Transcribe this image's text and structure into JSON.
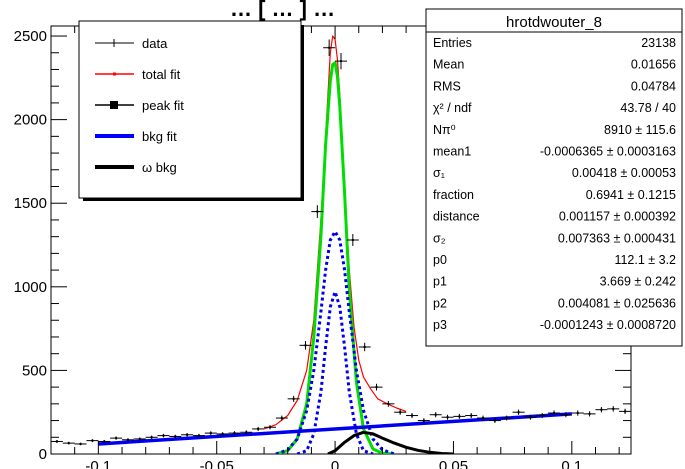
{
  "chart_data": {
    "type": "line",
    "title": "… [ … ] …",
    "xlim": [
      -0.12,
      0.125
    ],
    "ylim": [
      0,
      2560
    ],
    "x_ticks": [
      -0.1,
      -0.05,
      0,
      0.05,
      0.1
    ],
    "x_tick_labels": [
      "-0.1",
      "-0.05",
      "0",
      "0.05",
      "0.1"
    ],
    "y_ticks": [
      0,
      500,
      1000,
      1500,
      2000,
      2500
    ],
    "y_tick_labels": [
      "0",
      "500",
      "1000",
      "1500",
      "2000",
      "2500"
    ],
    "grid": false,
    "legend_placement": "top-left",
    "legend": [
      {
        "label": "data",
        "style": "data",
        "color": "#000000"
      },
      {
        "label": "total fit",
        "style": "line",
        "color": "#ff0000"
      },
      {
        "label": "peak fit",
        "style": "square",
        "color": "#000000"
      },
      {
        "label": "bkg fit",
        "style": "thick",
        "color": "#0000ff"
      },
      {
        "label": "ω bkg",
        "style": "thick",
        "color": "#000000"
      }
    ],
    "stats": {
      "title": "hrotdwouter_8",
      "rows": [
        {
          "name": "Entries",
          "value": "23138"
        },
        {
          "name": "Mean",
          "value": "0.01656"
        },
        {
          "name": "RMS",
          "value": "0.04784"
        },
        {
          "name": "χ² / ndf",
          "value": "43.78 / 40"
        },
        {
          "name": "Nπ⁰",
          "value": "8910 ± 115.6"
        },
        {
          "name": "mean1",
          "value": "-0.0006365 ± 0.0003163"
        },
        {
          "name": "σ₁",
          "value": "0.00418 ± 0.00053"
        },
        {
          "name": "fraction",
          "value": "0.6941 ± 0.1215"
        },
        {
          "name": "distance",
          "value": "0.001157 ± 0.000392"
        },
        {
          "name": "σ₂",
          "value": "0.007363 ± 0.000431"
        },
        {
          "name": "p0",
          "value": "112.1 ± 3.2"
        },
        {
          "name": "p1",
          "value": "3.669 ± 0.242"
        },
        {
          "name": "p2",
          "value": "0.004081 ± 0.025636"
        },
        {
          "name": "p3",
          "value": "-0.0001243 ± 0.0008720"
        }
      ]
    },
    "data_points": {
      "x": [
        -0.1175,
        -0.1125,
        -0.1075,
        -0.1025,
        -0.0975,
        -0.0925,
        -0.0875,
        -0.0825,
        -0.0775,
        -0.0725,
        -0.0675,
        -0.0625,
        -0.0575,
        -0.0525,
        -0.0475,
        -0.0425,
        -0.0375,
        -0.0325,
        -0.0275,
        -0.0225,
        -0.0175,
        -0.0125,
        -0.0075,
        -0.0025,
        0.0025,
        0.0075,
        0.0125,
        0.0175,
        0.0225,
        0.0275,
        0.0325,
        0.0375,
        0.0425,
        0.0475,
        0.0525,
        0.0575,
        0.0625,
        0.0675,
        0.0725,
        0.0775,
        0.0825,
        0.0875,
        0.0925,
        0.0975,
        0.1025,
        0.1075,
        0.1125,
        0.1175,
        0.1225
      ],
      "y": [
        75,
        65,
        60,
        80,
        75,
        95,
        85,
        90,
        100,
        110,
        105,
        115,
        110,
        125,
        120,
        125,
        130,
        150,
        160,
        215,
        330,
        650,
        1450,
        2430,
        2350,
        1280,
        640,
        400,
        300,
        250,
        230,
        200,
        235,
        220,
        225,
        230,
        215,
        200,
        215,
        250,
        220,
        230,
        245,
        235,
        245,
        240,
        265,
        270,
        255
      ]
    },
    "series": [
      {
        "name": "total fit",
        "color": "#ff0000",
        "width": 1.2,
        "dash": "",
        "x": [
          -0.03,
          -0.025,
          -0.02,
          -0.016,
          -0.012,
          -0.009,
          -0.006,
          -0.004,
          -0.002,
          -0.001,
          0,
          0.001,
          0.002,
          0.004,
          0.006,
          0.008,
          0.01,
          0.012,
          0.015,
          0.018,
          0.022,
          0.026,
          0.03
        ],
        "y": [
          150,
          175,
          230,
          320,
          500,
          800,
          1400,
          1900,
          2400,
          2500,
          2480,
          2360,
          2150,
          1600,
          1100,
          760,
          560,
          460,
          390,
          330,
          300,
          275,
          255
        ]
      },
      {
        "name": "peak fit (gaussian sum)",
        "color": "#00dd00",
        "width": 3,
        "dash": "",
        "x": [
          -0.025,
          -0.02,
          -0.016,
          -0.012,
          -0.009,
          -0.006,
          -0.004,
          -0.002,
          -0.001,
          0,
          0.001,
          0.002,
          0.004,
          0.006,
          0.009,
          0.012,
          0.016,
          0.02,
          0.025
        ],
        "y": [
          0,
          20,
          90,
          300,
          700,
          1300,
          1850,
          2230,
          2330,
          2340,
          2260,
          2080,
          1560,
          980,
          430,
          150,
          30,
          5,
          0
        ]
      },
      {
        "name": "narrow gaussian",
        "color": "#0000ee",
        "width": 3,
        "dash": "3,3",
        "x": [
          -0.016,
          -0.012,
          -0.009,
          -0.006,
          -0.004,
          -0.002,
          0,
          0.002,
          0.004,
          0.006,
          0.009,
          0.012,
          0.016
        ],
        "y": [
          0,
          20,
          120,
          370,
          640,
          880,
          970,
          880,
          640,
          370,
          120,
          20,
          0
        ]
      },
      {
        "name": "wide gaussian",
        "color": "#0000ee",
        "width": 3,
        "dash": "3,3",
        "x": [
          -0.025,
          -0.02,
          -0.016,
          -0.012,
          -0.009,
          -0.006,
          -0.004,
          -0.002,
          0,
          0.002,
          0.004,
          0.006,
          0.009,
          0.012,
          0.016,
          0.02,
          0.025
        ],
        "y": [
          0,
          25,
          90,
          260,
          500,
          850,
          1100,
          1280,
          1330,
          1280,
          1100,
          850,
          500,
          260,
          90,
          25,
          0
        ]
      },
      {
        "name": "bkg fit",
        "color": "#0000ee",
        "width": 3.5,
        "dash": "",
        "x": [
          -0.1,
          0.1
        ],
        "y": [
          60,
          240
        ]
      },
      {
        "name": "ω bkg",
        "color": "#000000",
        "width": 3,
        "dash": "",
        "x": [
          -0.003,
          0,
          0.004,
          0.008,
          0.012,
          0.016,
          0.02,
          0.025,
          0.03,
          0.035,
          0.04,
          0.045,
          0.05
        ],
        "y": [
          0,
          20,
          70,
          110,
          130,
          120,
          95,
          65,
          40,
          22,
          10,
          3,
          0
        ]
      }
    ]
  }
}
